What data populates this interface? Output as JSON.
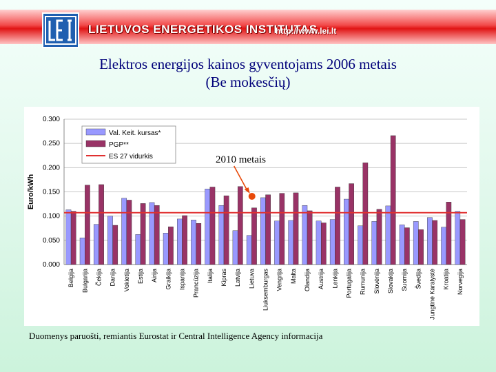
{
  "header": {
    "institute_name": "LIETUVOS ENERGETIKOS INSTITUTAS",
    "url": "http://www.lei.lt",
    "logo_icon": "lei-logo-icon",
    "logo_letters": "LEI",
    "band_color": "#e52020"
  },
  "title_line1": "Elektros energijos kainos gyventojams 2006 metais",
  "title_line2": "(Be mokesčių)",
  "footnote": "Duomenys paruošti, remiantis Eurostat ir Central Intelligence Agency informacija",
  "chart_data": {
    "type": "bar",
    "ylabel": "Euro/kWh",
    "ylim": [
      0,
      0.3
    ],
    "yticks": [
      "0.000",
      "0.050",
      "0.100",
      "0.150",
      "0.200",
      "0.250",
      "0.300"
    ],
    "grid": true,
    "legend_position": "top-left",
    "categories": [
      "Belgija",
      "Bulgarija",
      "Čekija",
      "Danija",
      "Vokietija",
      "Estija",
      "Airija",
      "Graikija",
      "Ispanija",
      "Prancūzija",
      "Italija",
      "Kipras",
      "Latvija",
      "Lietuva",
      "Liuksemburgas",
      "Vengrija",
      "Malta",
      "Olandija",
      "Austrija",
      "Lenkija",
      "Portugalija",
      "Rumunija",
      "Slovėnija",
      "Slovakija",
      "Suomija",
      "Švedija",
      "Jungtinė Karalystė",
      "Kroatija",
      "Norvegija"
    ],
    "series": [
      {
        "name": "Val. Keit. kursas*",
        "color": "#9999ff",
        "values": [
          0.113,
          0.055,
          0.083,
          0.1,
          0.137,
          0.062,
          0.128,
          0.065,
          0.094,
          0.092,
          0.156,
          0.122,
          0.07,
          0.06,
          0.138,
          0.09,
          0.091,
          0.122,
          0.09,
          0.093,
          0.135,
          0.08,
          0.089,
          0.121,
          0.082,
          0.089,
          0.097,
          0.077,
          0.11
        ]
      },
      {
        "name": "PGP**",
        "color": "#993366",
        "values": [
          0.11,
          0.164,
          0.165,
          0.081,
          0.133,
          0.126,
          0.122,
          0.078,
          0.101,
          0.085,
          0.16,
          0.142,
          0.161,
          0.117,
          0.144,
          0.147,
          0.148,
          0.111,
          0.086,
          0.16,
          0.167,
          0.21,
          0.114,
          0.266,
          0.076,
          0.072,
          0.091,
          0.129,
          0.093
        ]
      }
    ],
    "reference_line": {
      "name": "ES 27 vidurkis",
      "value": 0.107,
      "color": "#e03030"
    },
    "annotation": {
      "text": "2010 metais",
      "target_category": "Lietuva",
      "value": 0.138,
      "color": "#e84a0a"
    }
  }
}
